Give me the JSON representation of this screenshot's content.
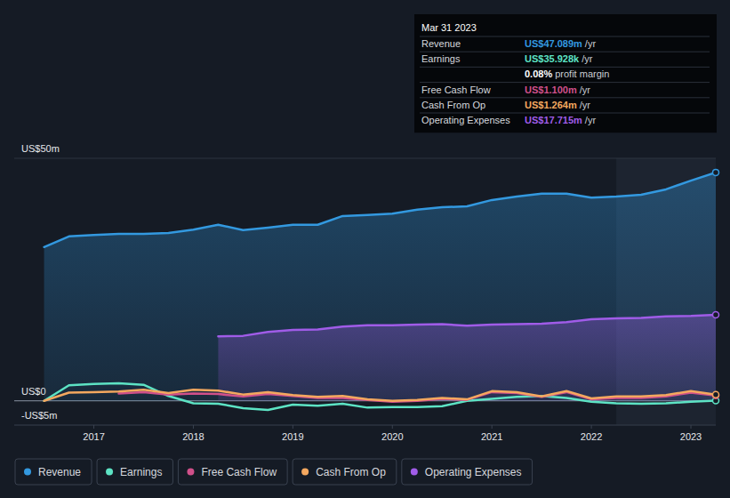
{
  "chart_data": {
    "type": "line",
    "x": [
      2016.5,
      2016.75,
      2017.0,
      2017.25,
      2017.5,
      2017.75,
      2018.0,
      2018.25,
      2018.5,
      2018.75,
      2019.0,
      2019.25,
      2019.5,
      2019.75,
      2020.0,
      2020.25,
      2020.5,
      2020.75,
      2021.0,
      2021.25,
      2021.5,
      2021.75,
      2022.0,
      2022.25,
      2022.5,
      2022.75,
      2023.0,
      2023.25
    ],
    "xlim": [
      2016.2,
      2023.25
    ],
    "xticks": [
      2017,
      2018,
      2019,
      2020,
      2021,
      2022,
      2023
    ],
    "ylim": [
      -5,
      50
    ],
    "yticks": [
      {
        "value": -5,
        "label": "-US$5m"
      },
      {
        "value": 0,
        "label": "US$0"
      },
      {
        "value": 50,
        "label": "US$50m"
      }
    ],
    "grid": true,
    "legend": "bottom",
    "series": [
      {
        "name": "Revenue",
        "type": "area",
        "color": "#3399e0",
        "values": [
          31.7,
          33.9,
          34.2,
          34.4,
          34.4,
          34.6,
          35.3,
          36.3,
          35.2,
          35.7,
          36.3,
          36.3,
          38.1,
          38.3,
          38.6,
          39.4,
          39.9,
          40.1,
          41.4,
          42.1,
          42.7,
          42.7,
          41.9,
          42.1,
          42.5,
          43.6,
          45.4,
          47.089
        ]
      },
      {
        "name": "Earnings",
        "type": "line",
        "color": "#5de3c4",
        "values": [
          0.0,
          3.2,
          3.5,
          3.6,
          3.3,
          1.0,
          -0.5,
          -0.6,
          -1.5,
          -1.9,
          -0.8,
          -1.0,
          -0.6,
          -1.4,
          -1.3,
          -1.3,
          -1.1,
          0.0,
          0.4,
          0.8,
          1.0,
          0.6,
          -0.2,
          -0.5,
          -0.6,
          -0.5,
          -0.2,
          0.036
        ]
      },
      {
        "name": "Free Cash Flow",
        "type": "line",
        "color": "#d0508a",
        "values": [
          null,
          null,
          null,
          1.5,
          1.8,
          1.3,
          1.5,
          1.4,
          0.9,
          1.4,
          1.0,
          0.6,
          0.6,
          0.2,
          -0.2,
          0.0,
          0.4,
          0.2,
          1.8,
          1.6,
          0.8,
          1.8,
          0.3,
          0.6,
          0.6,
          0.9,
          1.7,
          1.1
        ]
      },
      {
        "name": "Cash From Op",
        "type": "line",
        "color": "#f4a85f",
        "values": [
          0.0,
          1.7,
          1.8,
          1.9,
          2.3,
          1.6,
          2.3,
          2.1,
          1.3,
          1.8,
          1.2,
          0.8,
          1.0,
          0.3,
          0.0,
          0.2,
          0.6,
          0.3,
          2.0,
          1.8,
          0.9,
          2.0,
          0.5,
          0.9,
          0.9,
          1.2,
          2.0,
          1.264
        ]
      },
      {
        "name": "Operating Expenses",
        "type": "area",
        "color": "#a05ce8",
        "values": [
          null,
          null,
          null,
          null,
          null,
          null,
          null,
          13.3,
          13.4,
          14.2,
          14.6,
          14.7,
          15.3,
          15.6,
          15.6,
          15.7,
          15.8,
          15.5,
          15.7,
          15.8,
          15.9,
          16.2,
          16.8,
          17.0,
          17.1,
          17.4,
          17.5,
          17.715
        ]
      }
    ],
    "tooltip": {
      "date": "Mar 31 2023",
      "rows": [
        {
          "label": "Revenue",
          "value": "US$47.089m",
          "unit": "/yr",
          "color": "#3399e0"
        },
        {
          "label": "Earnings",
          "value": "US$35.928k",
          "unit": "/yr",
          "color": "#5de3c4"
        },
        {
          "value": "0.08%",
          "text": "profit margin",
          "color": "#ffffff"
        },
        {
          "label": "Free Cash Flow",
          "value": "US$1.100m",
          "unit": "/yr",
          "color": "#d0508a"
        },
        {
          "label": "Cash From Op",
          "value": "US$1.264m",
          "unit": "/yr",
          "color": "#f4a85f"
        },
        {
          "label": "Operating Expenses",
          "value": "US$17.715m",
          "unit": "/yr",
          "color": "#a05ce8"
        }
      ]
    }
  }
}
